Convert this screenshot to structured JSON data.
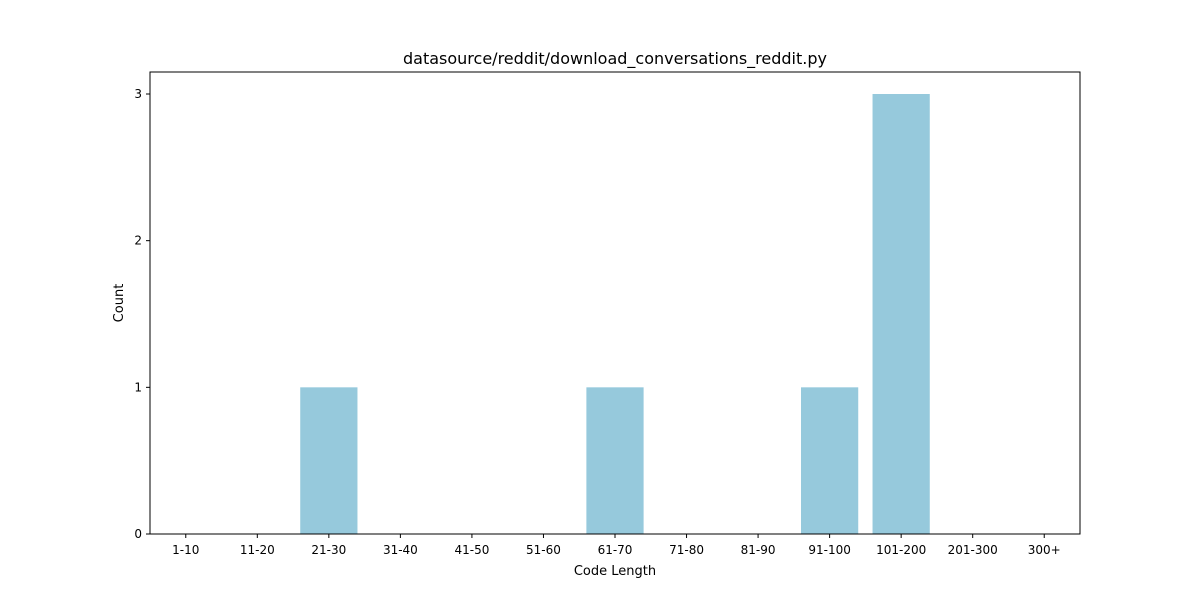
{
  "chart_data": {
    "type": "bar",
    "title": "datasource/reddit/download_conversations_reddit.py",
    "xlabel": "Code Length",
    "ylabel": "Count",
    "categories": [
      "1-10",
      "11-20",
      "21-30",
      "31-40",
      "41-50",
      "51-60",
      "61-70",
      "71-80",
      "81-90",
      "91-100",
      "101-200",
      "201-300",
      "300+"
    ],
    "values": [
      0,
      0,
      1,
      0,
      0,
      0,
      1,
      0,
      0,
      1,
      3,
      0,
      0
    ],
    "yticks": [
      "0",
      "1",
      "2",
      "3"
    ],
    "ylim": [
      0,
      3.15
    ],
    "grid": false,
    "bar_color": "#96c9dc"
  }
}
